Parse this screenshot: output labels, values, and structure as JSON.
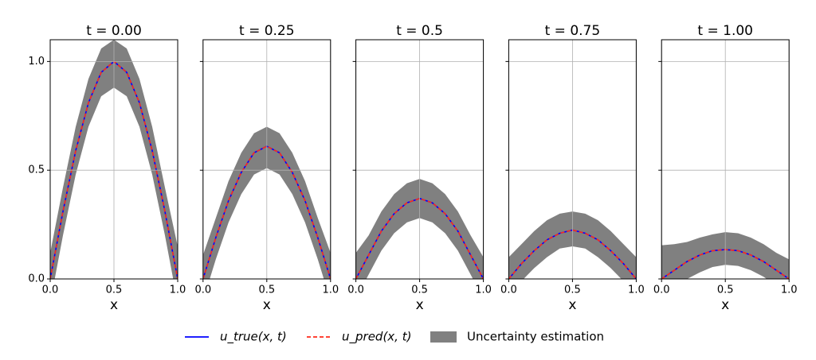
{
  "chart_data": [
    {
      "type": "line",
      "title": "t = 0.00",
      "x_label": "x",
      "x": [
        0,
        0.1,
        0.2,
        0.3,
        0.4,
        0.5,
        0.6,
        0.7,
        0.8,
        0.9,
        1
      ],
      "xlim": [
        0,
        1
      ],
      "ylim": [
        0,
        1.1
      ],
      "grid": true,
      "xticks": [
        {
          "value": 0,
          "label": "0.0"
        },
        {
          "value": 0.5,
          "label": "0.5"
        },
        {
          "value": 1,
          "label": "1.0"
        }
      ],
      "yticks": [
        {
          "value": 0,
          "label": "0.0"
        },
        {
          "value": 0.5,
          "label": "0.5"
        },
        {
          "value": 1,
          "label": "1.0"
        }
      ],
      "legend_loc": "lower center",
      "series": [
        {
          "name": "u_true(x, t)",
          "color": "#0000ff",
          "style": "solid",
          "values": [
            0,
            0.31,
            0.59,
            0.81,
            0.95,
            1.0,
            0.95,
            0.81,
            0.59,
            0.31,
            0
          ]
        },
        {
          "name": "u_pred(x, t)",
          "color": "#ff2a1a",
          "style": "dashed",
          "values": [
            0,
            0.31,
            0.59,
            0.81,
            0.95,
            1.0,
            0.95,
            0.81,
            0.59,
            0.31,
            0
          ]
        },
        {
          "name": "Uncertainty estimation",
          "color": "#808080",
          "style": "band",
          "upper": [
            0.12,
            0.42,
            0.7,
            0.92,
            1.06,
            1.1,
            1.06,
            0.92,
            0.7,
            0.42,
            0.15
          ],
          "lower": [
            -0.11,
            0.2,
            0.48,
            0.7,
            0.84,
            0.88,
            0.84,
            0.7,
            0.48,
            0.2,
            -0.11
          ]
        }
      ]
    },
    {
      "type": "line",
      "title": "t = 0.25",
      "x_label": "x",
      "x": [
        0,
        0.1,
        0.2,
        0.3,
        0.4,
        0.5,
        0.6,
        0.7,
        0.8,
        0.9,
        1
      ],
      "xlim": [
        0,
        1
      ],
      "ylim": [
        0,
        1.1
      ],
      "grid": true,
      "xticks": [
        {
          "value": 0,
          "label": "0.0"
        },
        {
          "value": 0.5,
          "label": "0.5"
        },
        {
          "value": 1,
          "label": "1.0"
        }
      ],
      "yticks": [
        0,
        0.5,
        1
      ],
      "series": [
        {
          "color": "#0000ff",
          "style": "solid",
          "values": [
            0,
            0.19,
            0.36,
            0.49,
            0.58,
            0.61,
            0.58,
            0.49,
            0.36,
            0.19,
            0
          ]
        },
        {
          "color": "#ff2a1a",
          "style": "dashed",
          "values": [
            0,
            0.19,
            0.36,
            0.49,
            0.58,
            0.61,
            0.58,
            0.49,
            0.36,
            0.19,
            0
          ]
        },
        {
          "color": "#808080",
          "style": "band",
          "upper": [
            0.11,
            0.28,
            0.45,
            0.58,
            0.67,
            0.7,
            0.67,
            0.58,
            0.45,
            0.28,
            0.12
          ],
          "lower": [
            -0.1,
            0.09,
            0.26,
            0.39,
            0.48,
            0.51,
            0.48,
            0.39,
            0.26,
            0.09,
            -0.1
          ]
        }
      ]
    },
    {
      "type": "line",
      "title": "t = 0.5",
      "x_label": "x",
      "x": [
        0,
        0.1,
        0.2,
        0.3,
        0.4,
        0.5,
        0.6,
        0.7,
        0.8,
        0.9,
        1
      ],
      "xlim": [
        0,
        1
      ],
      "ylim": [
        0,
        1.1
      ],
      "grid": true,
      "xticks": [
        {
          "value": 0,
          "label": "0.0"
        },
        {
          "value": 0.5,
          "label": "0.5"
        },
        {
          "value": 1,
          "label": "1.0"
        }
      ],
      "yticks": [
        0,
        0.5,
        1
      ],
      "series": [
        {
          "color": "#0000ff",
          "style": "solid",
          "values": [
            0,
            0.11,
            0.22,
            0.3,
            0.35,
            0.37,
            0.35,
            0.3,
            0.22,
            0.11,
            0
          ]
        },
        {
          "color": "#ff2a1a",
          "style": "dashed",
          "values": [
            0,
            0.11,
            0.22,
            0.3,
            0.35,
            0.37,
            0.35,
            0.3,
            0.22,
            0.11,
            0
          ]
        },
        {
          "color": "#808080",
          "style": "band",
          "upper": [
            0.12,
            0.2,
            0.31,
            0.39,
            0.44,
            0.46,
            0.44,
            0.39,
            0.31,
            0.2,
            0.1
          ],
          "lower": [
            -0.09,
            0.02,
            0.13,
            0.21,
            0.26,
            0.28,
            0.26,
            0.21,
            0.13,
            0.02,
            -0.09
          ]
        }
      ]
    },
    {
      "type": "line",
      "title": "t = 0.75",
      "x_label": "x",
      "x": [
        0,
        0.1,
        0.2,
        0.3,
        0.4,
        0.5,
        0.6,
        0.7,
        0.8,
        0.9,
        1
      ],
      "xlim": [
        0,
        1
      ],
      "ylim": [
        0,
        1.1
      ],
      "grid": true,
      "xticks": [
        {
          "value": 0,
          "label": "0.0"
        },
        {
          "value": 0.5,
          "label": "0.5"
        },
        {
          "value": 1,
          "label": "1.0"
        }
      ],
      "yticks": [
        0,
        0.5,
        1
      ],
      "series": [
        {
          "color": "#0000ff",
          "style": "solid",
          "values": [
            0,
            0.07,
            0.13,
            0.18,
            0.21,
            0.225,
            0.21,
            0.18,
            0.13,
            0.07,
            0
          ]
        },
        {
          "color": "#ff2a1a",
          "style": "dashed",
          "values": [
            0,
            0.07,
            0.13,
            0.18,
            0.21,
            0.225,
            0.21,
            0.18,
            0.13,
            0.07,
            0
          ]
        },
        {
          "color": "#808080",
          "style": "band",
          "upper": [
            0.1,
            0.16,
            0.22,
            0.27,
            0.3,
            0.31,
            0.3,
            0.27,
            0.22,
            0.16,
            0.1
          ],
          "lower": [
            -0.08,
            -0.01,
            0.05,
            0.1,
            0.14,
            0.15,
            0.14,
            0.1,
            0.05,
            -0.01,
            -0.08
          ]
        }
      ]
    },
    {
      "type": "line",
      "title": "t = 1.00",
      "x_label": "x",
      "x": [
        0,
        0.1,
        0.2,
        0.3,
        0.4,
        0.5,
        0.6,
        0.7,
        0.8,
        0.9,
        1
      ],
      "xlim": [
        0,
        1
      ],
      "ylim": [
        0,
        1.1
      ],
      "grid": true,
      "xticks": [
        {
          "value": 0,
          "label": "0.0"
        },
        {
          "value": 0.5,
          "label": "0.5"
        },
        {
          "value": 1,
          "label": "1.0"
        }
      ],
      "yticks": [
        0,
        0.5,
        1
      ],
      "series": [
        {
          "color": "#0000ff",
          "style": "solid",
          "values": [
            0,
            0.04,
            0.08,
            0.11,
            0.13,
            0.135,
            0.13,
            0.11,
            0.08,
            0.04,
            0
          ]
        },
        {
          "color": "#ff2a1a",
          "style": "dashed",
          "values": [
            0,
            0.04,
            0.08,
            0.11,
            0.13,
            0.135,
            0.13,
            0.11,
            0.08,
            0.04,
            0
          ]
        },
        {
          "color": "#808080",
          "style": "band",
          "upper": [
            0.155,
            0.16,
            0.17,
            0.19,
            0.205,
            0.215,
            0.21,
            0.19,
            0.16,
            0.12,
            0.09
          ],
          "lower": [
            -0.05,
            -0.03,
            0,
            0.03,
            0.055,
            0.065,
            0.06,
            0.04,
            0.01,
            -0.03,
            -0.06
          ]
        }
      ]
    }
  ]
}
